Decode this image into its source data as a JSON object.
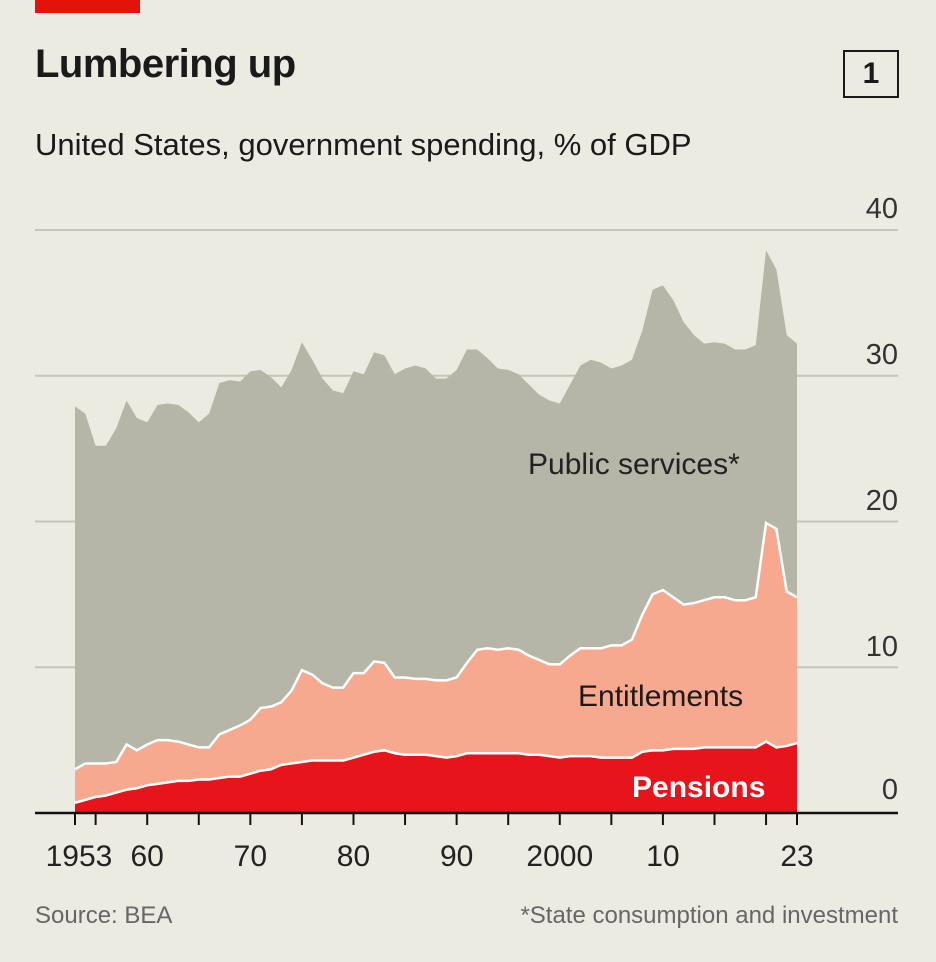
{
  "header": {
    "title": "Lumbering up",
    "chart_number": "1",
    "subtitle": "United States, government spending, % of GDP"
  },
  "footer": {
    "source": "Source: BEA",
    "note": "*State consumption and investment"
  },
  "colors": {
    "accent": "#e3120b",
    "pensions": "#e8141c",
    "entitlements": "#f7a98f",
    "public_services": "#b5b5a8",
    "background": "#ecebe2"
  },
  "chart_data": {
    "type": "area",
    "stacked": true,
    "title": "Lumbering up",
    "subtitle": "United States, government spending, % of GDP",
    "xlabel": "",
    "ylabel": "% of GDP",
    "ylim": [
      0,
      40
    ],
    "xlim": [
      1953,
      2023
    ],
    "yticks": [
      "0",
      "10",
      "20",
      "30",
      "40"
    ],
    "xticks": [
      {
        "year": 1953,
        "label": "1953"
      },
      {
        "year": 1960,
        "label": "60"
      },
      {
        "year": 1970,
        "label": "70"
      },
      {
        "year": 1980,
        "label": "80"
      },
      {
        "year": 1990,
        "label": "90"
      },
      {
        "year": 2000,
        "label": "2000"
      },
      {
        "year": 2010,
        "label": "10"
      },
      {
        "year": 2023,
        "label": "23"
      }
    ],
    "grid": true,
    "x": [
      1953,
      1954,
      1955,
      1956,
      1957,
      1958,
      1959,
      1960,
      1961,
      1962,
      1963,
      1964,
      1965,
      1966,
      1967,
      1968,
      1969,
      1970,
      1971,
      1972,
      1973,
      1974,
      1975,
      1976,
      1977,
      1978,
      1979,
      1980,
      1981,
      1982,
      1983,
      1984,
      1985,
      1986,
      1987,
      1988,
      1989,
      1990,
      1991,
      1992,
      1993,
      1994,
      1995,
      1996,
      1997,
      1998,
      1999,
      2000,
      2001,
      2002,
      2003,
      2004,
      2005,
      2006,
      2007,
      2008,
      2009,
      2010,
      2011,
      2012,
      2013,
      2014,
      2015,
      2016,
      2017,
      2018,
      2019,
      2020,
      2021,
      2022,
      2023
    ],
    "series": [
      {
        "name": "Pensions",
        "values": [
          0.7,
          0.9,
          1.1,
          1.2,
          1.4,
          1.6,
          1.7,
          1.9,
          2.0,
          2.1,
          2.2,
          2.2,
          2.3,
          2.3,
          2.4,
          2.5,
          2.5,
          2.7,
          2.9,
          3.0,
          3.3,
          3.4,
          3.5,
          3.6,
          3.6,
          3.6,
          3.6,
          3.8,
          4.0,
          4.2,
          4.3,
          4.1,
          4.0,
          4.0,
          4.0,
          3.9,
          3.8,
          3.9,
          4.1,
          4.1,
          4.1,
          4.1,
          4.1,
          4.1,
          4.0,
          4.0,
          3.9,
          3.8,
          3.9,
          3.9,
          3.9,
          3.8,
          3.8,
          3.8,
          3.8,
          4.2,
          4.3,
          4.3,
          4.4,
          4.4,
          4.4,
          4.5,
          4.5,
          4.5,
          4.5,
          4.5,
          4.5,
          4.9,
          4.5,
          4.6,
          4.8
        ]
      },
      {
        "name": "Entitlements",
        "values": [
          2.3,
          2.5,
          2.3,
          2.2,
          2.1,
          3.1,
          2.6,
          2.8,
          3.0,
          2.9,
          2.7,
          2.5,
          2.2,
          2.2,
          3.0,
          3.2,
          3.5,
          3.7,
          4.3,
          4.3,
          4.3,
          5.0,
          6.3,
          5.9,
          5.3,
          5.0,
          5.0,
          5.8,
          5.6,
          6.2,
          6.0,
          5.2,
          5.3,
          5.2,
          5.2,
          5.2,
          5.3,
          5.4,
          6.2,
          7.1,
          7.2,
          7.1,
          7.2,
          7.1,
          6.8,
          6.5,
          6.3,
          6.4,
          6.9,
          7.4,
          7.4,
          7.5,
          7.7,
          7.7,
          8.1,
          9.4,
          10.7,
          11.0,
          10.4,
          9.9,
          10.0,
          10.1,
          10.3,
          10.3,
          10.1,
          10.1,
          10.3,
          15.0,
          15.0,
          10.6,
          10.0
        ]
      },
      {
        "name": "Public services*",
        "values": [
          24.9,
          24.0,
          21.8,
          21.8,
          22.9,
          23.6,
          22.8,
          22.1,
          23.0,
          23.1,
          23.1,
          22.8,
          22.3,
          22.9,
          24.1,
          24.0,
          23.6,
          23.9,
          23.2,
          22.6,
          21.6,
          22.0,
          22.5,
          21.6,
          20.9,
          20.4,
          20.2,
          20.7,
          20.5,
          21.2,
          21.1,
          20.8,
          21.2,
          21.5,
          21.3,
          20.7,
          20.7,
          21.1,
          21.5,
          20.6,
          19.9,
          19.3,
          19.1,
          18.9,
          18.6,
          18.2,
          18.1,
          17.9,
          18.6,
          19.4,
          19.8,
          19.6,
          19.0,
          19.2,
          19.2,
          19.5,
          20.9,
          20.9,
          20.4,
          19.4,
          18.4,
          17.6,
          17.5,
          17.4,
          17.2,
          17.2,
          17.3,
          18.7,
          17.8,
          17.6,
          17.4
        ]
      }
    ],
    "legend": "inline labels"
  }
}
